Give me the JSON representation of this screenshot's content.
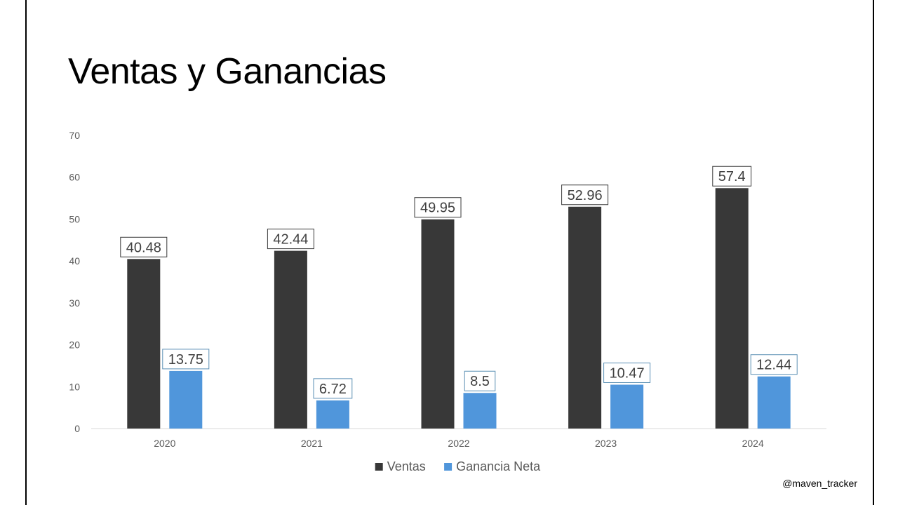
{
  "slide": {
    "title": "Ventas y Ganancias",
    "watermark": "@maven_tracker"
  },
  "chart_data": {
    "type": "bar",
    "categories": [
      "2020",
      "2021",
      "2022",
      "2023",
      "2024"
    ],
    "series": [
      {
        "name": "Ventas",
        "values": [
          40.48,
          42.44,
          49.95,
          52.96,
          57.4
        ],
        "color": "#383838",
        "label_border": "#383838"
      },
      {
        "name": "Ganancia Neta",
        "values": [
          13.75,
          6.72,
          8.5,
          10.47,
          12.44
        ],
        "color": "#5096DB",
        "label_border": "#5A8FB4"
      }
    ],
    "title": "",
    "xlabel": "",
    "ylabel": "",
    "ylim": [
      0,
      70
    ],
    "yticks": [
      0,
      10,
      20,
      30,
      40,
      50,
      60,
      70
    ],
    "grid": false,
    "legend": "bottom",
    "data_labels": true
  }
}
